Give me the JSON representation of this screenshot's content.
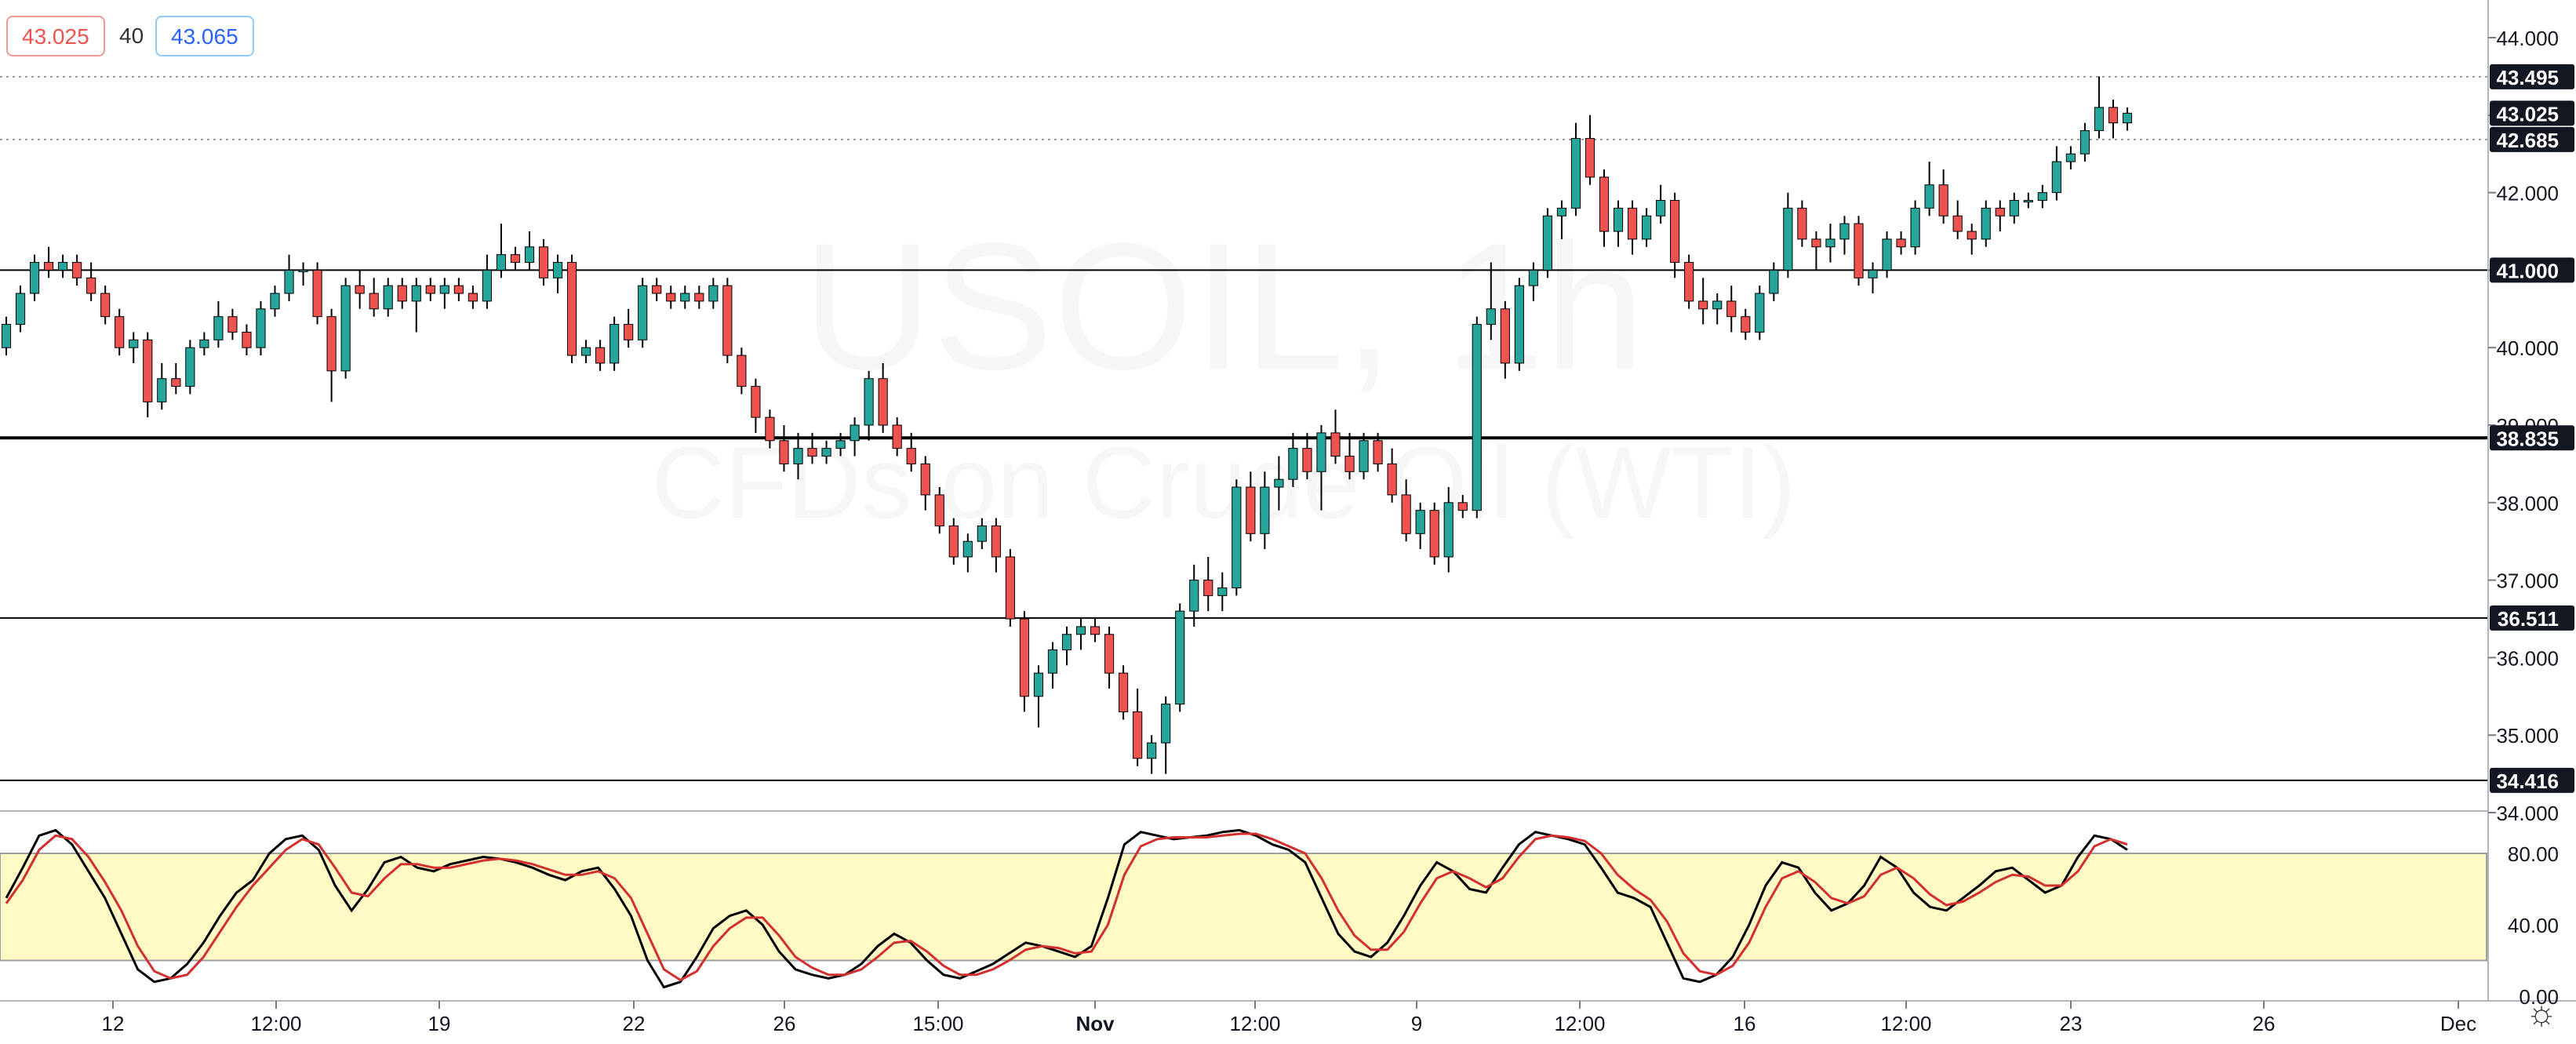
{
  "quote": {
    "bid": "43.025",
    "spread": "40",
    "ask": "43.065"
  },
  "watermark": {
    "line1": "USOIL, 1h",
    "line2": "CFDs on Crude Oil (WTI)"
  },
  "price_axis": {
    "ticks": [
      "44.000",
      "43.000",
      "42.000",
      "41.000",
      "40.000",
      "39.000",
      "38.000",
      "37.000",
      "36.000",
      "35.000",
      "34.000"
    ],
    "labels": [
      {
        "text": "43.495",
        "style": "dark"
      },
      {
        "text": "43.025",
        "style": "dark"
      },
      {
        "text": "42.685",
        "style": "dark"
      },
      {
        "text": "41.000",
        "style": "dark"
      },
      {
        "text": "38.835",
        "style": "dark"
      },
      {
        "text": "36.511",
        "style": "dark"
      },
      {
        "text": "34.416",
        "style": "dark"
      }
    ]
  },
  "osc_axis": {
    "ticks": [
      "80.00",
      "40.00",
      "0.00"
    ]
  },
  "time_axis": {
    "labels": [
      "12",
      "12:00",
      "19",
      "22",
      "26",
      "15:00",
      "Nov",
      "12:00",
      "9",
      "12:00",
      "16",
      "12:00",
      "23",
      "26",
      "Dec"
    ]
  },
  "colors": {
    "up": "#26a69a",
    "down": "#ef5350",
    "k_line": "#000000",
    "d_line": "#d32f2f",
    "band_fill": "#fff9c4",
    "horizontal_line": "#000000"
  },
  "icons": {
    "settings": "gear-icon"
  },
  "chart_data": [
    {
      "type": "candlestick",
      "symbol": "USOIL",
      "timeframe": "1h",
      "ylim": [
        34.0,
        44.5
      ],
      "horizontal_levels": [
        43.495,
        42.685,
        41.0,
        38.835,
        36.511,
        34.416
      ],
      "candles": [
        [
          40.0,
          40.4,
          39.9,
          40.3
        ],
        [
          40.3,
          40.8,
          40.2,
          40.7
        ],
        [
          40.7,
          41.2,
          40.6,
          41.1
        ],
        [
          41.1,
          41.3,
          40.9,
          41.0
        ],
        [
          41.0,
          41.2,
          40.9,
          41.1
        ],
        [
          41.1,
          41.2,
          40.8,
          40.9
        ],
        [
          40.9,
          41.1,
          40.6,
          40.7
        ],
        [
          40.7,
          40.8,
          40.3,
          40.4
        ],
        [
          40.4,
          40.5,
          39.9,
          40.0
        ],
        [
          40.0,
          40.2,
          39.8,
          40.1
        ],
        [
          40.1,
          40.2,
          39.1,
          39.3
        ],
        [
          39.3,
          39.8,
          39.2,
          39.6
        ],
        [
          39.6,
          39.8,
          39.4,
          39.5
        ],
        [
          39.5,
          40.1,
          39.4,
          40.0
        ],
        [
          40.0,
          40.2,
          39.9,
          40.1
        ],
        [
          40.1,
          40.6,
          40.0,
          40.4
        ],
        [
          40.4,
          40.5,
          40.1,
          40.2
        ],
        [
          40.2,
          40.3,
          39.9,
          40.0
        ],
        [
          40.0,
          40.6,
          39.9,
          40.5
        ],
        [
          40.5,
          40.8,
          40.4,
          40.7
        ],
        [
          40.7,
          41.2,
          40.6,
          41.0
        ],
        [
          41.0,
          41.1,
          40.8,
          41.0
        ],
        [
          41.0,
          41.1,
          40.3,
          40.4
        ],
        [
          40.4,
          40.5,
          39.3,
          39.7
        ],
        [
          39.7,
          40.9,
          39.6,
          40.8
        ],
        [
          40.8,
          41.0,
          40.5,
          40.7
        ],
        [
          40.7,
          40.9,
          40.4,
          40.5
        ],
        [
          40.5,
          40.9,
          40.4,
          40.8
        ],
        [
          40.8,
          40.9,
          40.5,
          40.6
        ],
        [
          40.6,
          40.9,
          40.2,
          40.8
        ],
        [
          40.8,
          40.9,
          40.6,
          40.7
        ],
        [
          40.7,
          40.9,
          40.5,
          40.8
        ],
        [
          40.8,
          40.9,
          40.6,
          40.7
        ],
        [
          40.7,
          40.8,
          40.5,
          40.6
        ],
        [
          40.6,
          41.2,
          40.5,
          41.0
        ],
        [
          41.0,
          41.6,
          40.9,
          41.2
        ],
        [
          41.2,
          41.3,
          41.0,
          41.1
        ],
        [
          41.1,
          41.5,
          41.0,
          41.3
        ],
        [
          41.3,
          41.4,
          40.8,
          40.9
        ],
        [
          40.9,
          41.2,
          40.7,
          41.1
        ],
        [
          41.1,
          41.2,
          39.8,
          39.9
        ],
        [
          39.9,
          40.1,
          39.8,
          40.0
        ],
        [
          40.0,
          40.1,
          39.7,
          39.8
        ],
        [
          39.8,
          40.4,
          39.7,
          40.3
        ],
        [
          40.3,
          40.5,
          40.0,
          40.1
        ],
        [
          40.1,
          40.9,
          40.0,
          40.8
        ],
        [
          40.8,
          40.9,
          40.6,
          40.7
        ],
        [
          40.7,
          40.8,
          40.5,
          40.6
        ],
        [
          40.6,
          40.8,
          40.5,
          40.7
        ],
        [
          40.7,
          40.8,
          40.5,
          40.6
        ],
        [
          40.6,
          40.9,
          40.5,
          40.8
        ],
        [
          40.8,
          40.9,
          39.8,
          39.9
        ],
        [
          39.9,
          40.0,
          39.4,
          39.5
        ],
        [
          39.5,
          39.6,
          38.9,
          39.1
        ],
        [
          39.1,
          39.2,
          38.7,
          38.8
        ],
        [
          38.8,
          39.0,
          38.4,
          38.5
        ],
        [
          38.5,
          38.9,
          38.3,
          38.7
        ],
        [
          38.7,
          38.9,
          38.5,
          38.6
        ],
        [
          38.6,
          38.8,
          38.5,
          38.7
        ],
        [
          38.7,
          38.9,
          38.6,
          38.8
        ],
        [
          38.8,
          39.1,
          38.6,
          39.0
        ],
        [
          39.0,
          39.7,
          38.8,
          39.6
        ],
        [
          39.6,
          39.8,
          38.9,
          39.0
        ],
        [
          39.0,
          39.1,
          38.6,
          38.7
        ],
        [
          38.7,
          38.9,
          38.4,
          38.5
        ],
        [
          38.5,
          38.6,
          37.9,
          38.1
        ],
        [
          38.1,
          38.2,
          37.6,
          37.7
        ],
        [
          37.7,
          37.8,
          37.2,
          37.3
        ],
        [
          37.3,
          37.6,
          37.1,
          37.5
        ],
        [
          37.5,
          37.8,
          37.4,
          37.7
        ],
        [
          37.7,
          37.8,
          37.1,
          37.3
        ],
        [
          37.3,
          37.4,
          36.4,
          36.5
        ],
        [
          36.5,
          36.6,
          35.3,
          35.5
        ],
        [
          35.5,
          35.9,
          35.1,
          35.8
        ],
        [
          35.8,
          36.2,
          35.6,
          36.1
        ],
        [
          36.1,
          36.4,
          35.9,
          36.3
        ],
        [
          36.3,
          36.5,
          36.1,
          36.4
        ],
        [
          36.4,
          36.5,
          36.2,
          36.3
        ],
        [
          36.3,
          36.4,
          35.6,
          35.8
        ],
        [
          35.8,
          35.9,
          35.2,
          35.3
        ],
        [
          35.3,
          35.6,
          34.6,
          34.7
        ],
        [
          34.7,
          35.0,
          34.5,
          34.9
        ],
        [
          34.9,
          35.5,
          34.5,
          35.4
        ],
        [
          35.4,
          36.7,
          35.3,
          36.6
        ],
        [
          36.6,
          37.2,
          36.4,
          37.0
        ],
        [
          37.0,
          37.3,
          36.6,
          36.8
        ],
        [
          36.8,
          37.1,
          36.6,
          36.9
        ],
        [
          36.9,
          38.3,
          36.8,
          38.2
        ],
        [
          38.2,
          38.4,
          37.5,
          37.6
        ],
        [
          37.6,
          38.4,
          37.4,
          38.2
        ],
        [
          38.2,
          38.6,
          37.9,
          38.3
        ],
        [
          38.3,
          38.9,
          38.2,
          38.7
        ],
        [
          38.7,
          38.9,
          38.3,
          38.4
        ],
        [
          38.4,
          39.0,
          37.9,
          38.9
        ],
        [
          38.9,
          39.2,
          38.5,
          38.6
        ],
        [
          38.6,
          38.9,
          38.3,
          38.4
        ],
        [
          38.4,
          38.9,
          38.3,
          38.8
        ],
        [
          38.8,
          38.9,
          38.4,
          38.5
        ],
        [
          38.5,
          38.7,
          38.0,
          38.1
        ],
        [
          38.1,
          38.3,
          37.5,
          37.6
        ],
        [
          37.6,
          38.0,
          37.4,
          37.9
        ],
        [
          37.9,
          38.0,
          37.2,
          37.3
        ],
        [
          37.3,
          38.2,
          37.1,
          38.0
        ],
        [
          38.0,
          38.1,
          37.8,
          37.9
        ],
        [
          37.9,
          40.4,
          37.8,
          40.3
        ],
        [
          40.3,
          41.1,
          40.1,
          40.5
        ],
        [
          40.5,
          40.6,
          39.6,
          39.8
        ],
        [
          39.8,
          40.9,
          39.7,
          40.8
        ],
        [
          40.8,
          41.1,
          40.6,
          41.0
        ],
        [
          41.0,
          41.8,
          40.9,
          41.7
        ],
        [
          41.7,
          41.9,
          41.4,
          41.8
        ],
        [
          41.8,
          42.9,
          41.7,
          42.7
        ],
        [
          42.7,
          43.0,
          42.1,
          42.2
        ],
        [
          42.2,
          42.3,
          41.3,
          41.5
        ],
        [
          41.5,
          41.9,
          41.3,
          41.8
        ],
        [
          41.8,
          41.9,
          41.2,
          41.4
        ],
        [
          41.4,
          41.8,
          41.3,
          41.7
        ],
        [
          41.7,
          42.1,
          41.6,
          41.9
        ],
        [
          41.9,
          42.0,
          40.9,
          41.1
        ],
        [
          41.1,
          41.2,
          40.5,
          40.6
        ],
        [
          40.6,
          40.9,
          40.3,
          40.5
        ],
        [
          40.5,
          40.7,
          40.3,
          40.6
        ],
        [
          40.6,
          40.8,
          40.2,
          40.4
        ],
        [
          40.4,
          40.5,
          40.1,
          40.2
        ],
        [
          40.2,
          40.8,
          40.1,
          40.7
        ],
        [
          40.7,
          41.1,
          40.6,
          41.0
        ],
        [
          41.0,
          42.0,
          40.9,
          41.8
        ],
        [
          41.8,
          41.9,
          41.3,
          41.4
        ],
        [
          41.4,
          41.5,
          41.0,
          41.3
        ],
        [
          41.3,
          41.6,
          41.1,
          41.4
        ],
        [
          41.4,
          41.7,
          41.2,
          41.6
        ],
        [
          41.6,
          41.7,
          40.8,
          40.9
        ],
        [
          40.9,
          41.1,
          40.7,
          41.0
        ],
        [
          41.0,
          41.5,
          40.9,
          41.4
        ],
        [
          41.4,
          41.5,
          41.2,
          41.3
        ],
        [
          41.3,
          41.9,
          41.2,
          41.8
        ],
        [
          41.8,
          42.4,
          41.7,
          42.1
        ],
        [
          42.1,
          42.3,
          41.6,
          41.7
        ],
        [
          41.7,
          41.9,
          41.4,
          41.5
        ],
        [
          41.5,
          41.6,
          41.2,
          41.4
        ],
        [
          41.4,
          41.9,
          41.3,
          41.8
        ],
        [
          41.8,
          41.9,
          41.5,
          41.7
        ],
        [
          41.7,
          42.0,
          41.6,
          41.9
        ],
        [
          41.9,
          42.0,
          41.8,
          41.9
        ],
        [
          41.9,
          42.1,
          41.8,
          42.0
        ],
        [
          42.0,
          42.6,
          41.9,
          42.4
        ],
        [
          42.4,
          42.6,
          42.3,
          42.5
        ],
        [
          42.5,
          42.9,
          42.4,
          42.8
        ],
        [
          42.8,
          43.5,
          42.7,
          43.1
        ],
        [
          43.1,
          43.2,
          42.7,
          42.9
        ],
        [
          42.9,
          43.1,
          42.8,
          43.025
        ]
      ]
    },
    {
      "type": "line",
      "indicator": "Stochastic",
      "ylim": [
        0,
        100
      ],
      "band": [
        20,
        80
      ],
      "series": [
        {
          "values": [
            55,
            72,
            90,
            93,
            85,
            70,
            55,
            35,
            15,
            8,
            10,
            18,
            30,
            45,
            58,
            65,
            80,
            88,
            90,
            82,
            62,
            48,
            60,
            75,
            78,
            72,
            70,
            74,
            76,
            78,
            77,
            75,
            72,
            68,
            65,
            70,
            72,
            60,
            45,
            20,
            5,
            8,
            22,
            38,
            45,
            48,
            40,
            25,
            15,
            12,
            10,
            12,
            18,
            28,
            35,
            30,
            20,
            12,
            10,
            14,
            18,
            24,
            30,
            28,
            25,
            22,
            28,
            55,
            85,
            92,
            90,
            88,
            89,
            90,
            92,
            93,
            90,
            85,
            82,
            75,
            55,
            35,
            25,
            22,
            30,
            45,
            62,
            75,
            70,
            60,
            58,
            72,
            85,
            92,
            90,
            88,
            85,
            72,
            58,
            55,
            50,
            30,
            10,
            8,
            12,
            22,
            40,
            62,
            75,
            72,
            58,
            48,
            52,
            62,
            78,
            72,
            58,
            50,
            48,
            55,
            62,
            70,
            72,
            65,
            58,
            62,
            78,
            90,
            88,
            82
          ]
        },
        {
          "values": [
            52,
            65,
            82,
            90,
            88,
            78,
            64,
            48,
            28,
            14,
            10,
            12,
            22,
            36,
            50,
            62,
            72,
            82,
            88,
            85,
            72,
            58,
            56,
            66,
            74,
            74,
            72,
            72,
            74,
            76,
            77,
            76,
            74,
            71,
            68,
            68,
            70,
            66,
            55,
            35,
            15,
            9,
            14,
            28,
            38,
            44,
            44,
            34,
            22,
            16,
            12,
            12,
            15,
            22,
            30,
            31,
            25,
            17,
            12,
            12,
            15,
            20,
            26,
            28,
            27,
            24,
            25,
            40,
            68,
            84,
            88,
            89,
            89,
            89,
            90,
            91,
            91,
            88,
            84,
            80,
            66,
            48,
            34,
            26,
            26,
            36,
            52,
            66,
            70,
            66,
            61,
            66,
            78,
            88,
            90,
            89,
            87,
            80,
            68,
            60,
            54,
            42,
            24,
            14,
            12,
            17,
            30,
            50,
            66,
            70,
            64,
            55,
            52,
            56,
            68,
            72,
            66,
            57,
            51,
            53,
            58,
            64,
            68,
            67,
            62,
            62,
            70,
            84,
            88,
            85
          ]
        }
      ]
    }
  ]
}
